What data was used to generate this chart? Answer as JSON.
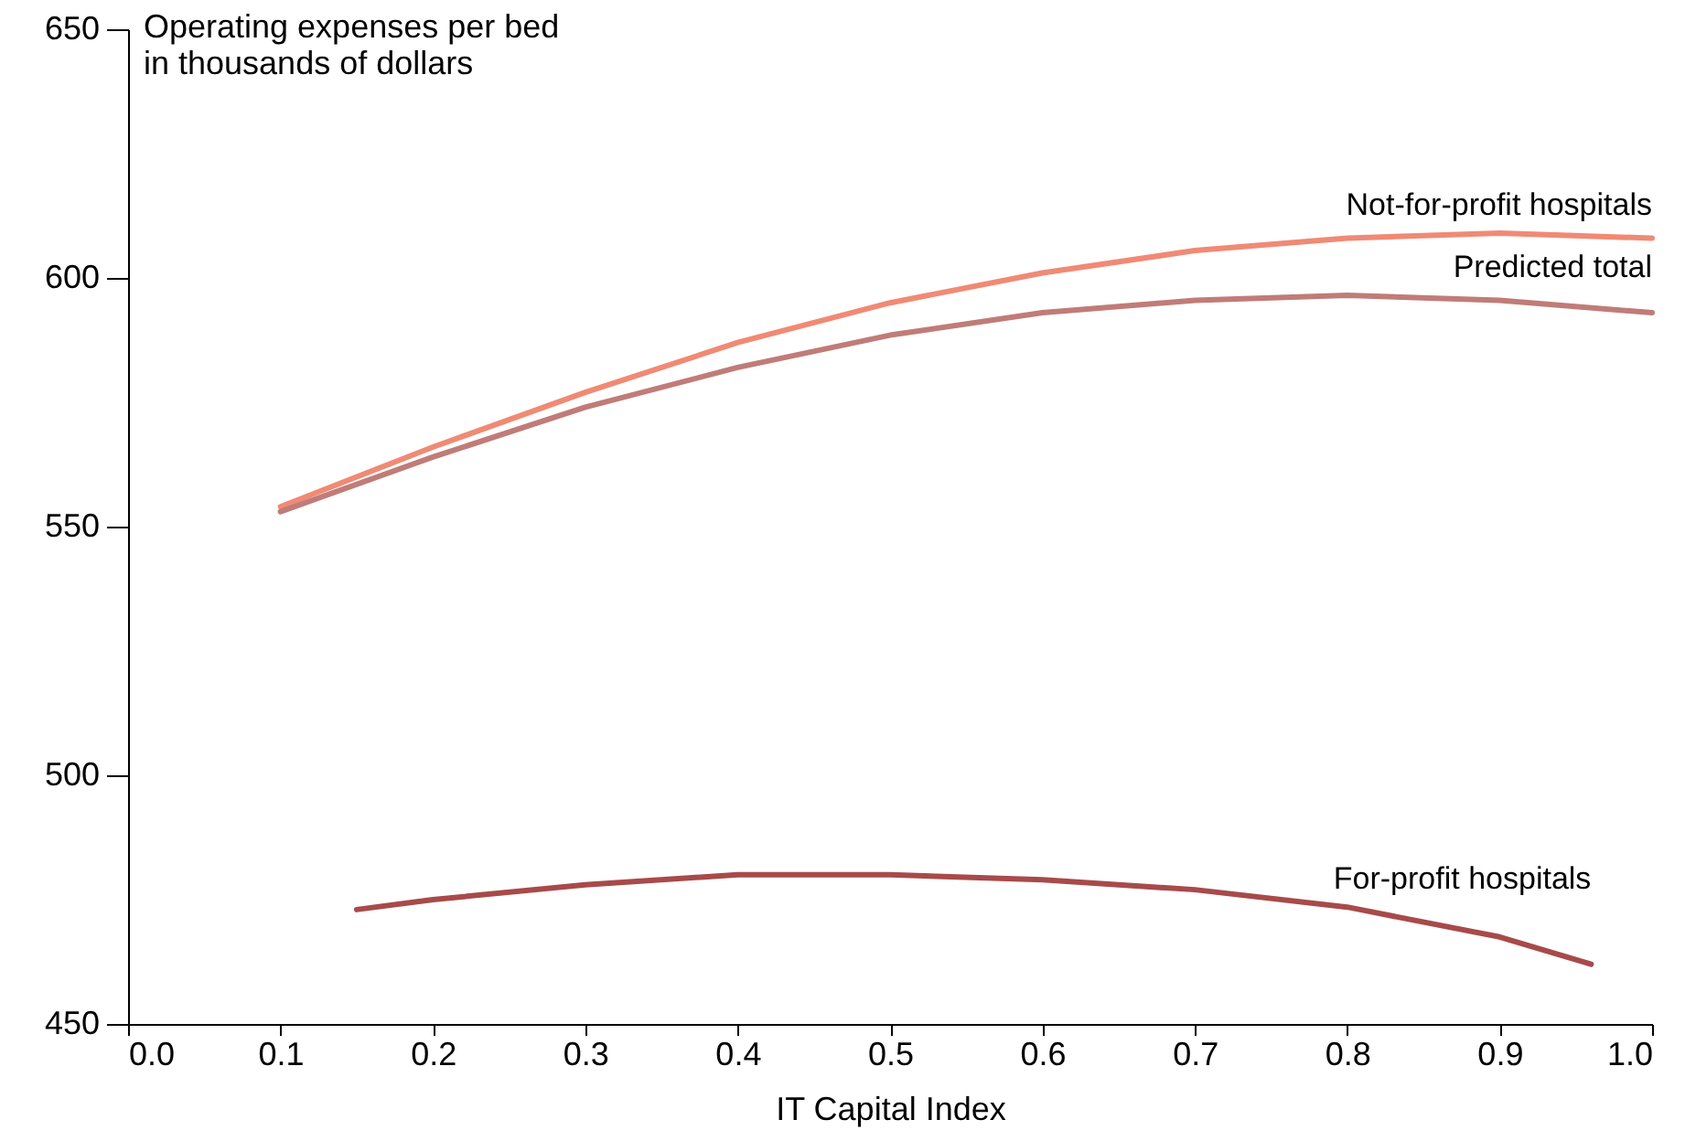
{
  "chart_data": {
    "type": "line",
    "xlabel": "IT Capital Index",
    "ylabel": "Operating expenses per bed\nin thousands of dollars",
    "xlim": [
      0,
      1
    ],
    "xticks": [
      {
        "value": 0,
        "label": "0.0"
      },
      {
        "value": 0.1,
        "label": "0.1"
      },
      {
        "value": 0.2,
        "label": "0.2"
      },
      {
        "value": 0.3,
        "label": "0.3"
      },
      {
        "value": 0.4,
        "label": "0.4"
      },
      {
        "value": 0.5,
        "label": "0.5"
      },
      {
        "value": 0.6,
        "label": "0.6"
      },
      {
        "value": 0.7,
        "label": "0.7"
      },
      {
        "value": 0.8,
        "label": "0.8"
      },
      {
        "value": 0.9,
        "label": "0.9"
      },
      {
        "value": 1,
        "label": "1.0"
      }
    ],
    "ylim": [
      450,
      650
    ],
    "yticks": [
      450,
      500,
      550,
      600,
      650
    ],
    "grid": false,
    "marker": "none",
    "line_style": "solid",
    "series": [
      {
        "name": "Not-for-profit hospitals",
        "color": "#f08a75",
        "x": [
          0.1,
          0.2,
          0.3,
          0.4,
          0.5,
          0.6,
          0.7,
          0.8,
          0.9,
          1.0
        ],
        "values": [
          554,
          566,
          577,
          587,
          595,
          601,
          605.5,
          608,
          609,
          608
        ]
      },
      {
        "name": "Predicted total",
        "color": "#c07c78",
        "x": [
          0.1,
          0.2,
          0.3,
          0.4,
          0.5,
          0.6,
          0.7,
          0.8,
          0.9,
          1.0
        ],
        "values": [
          553,
          564,
          574,
          582,
          588.5,
          593,
          595.5,
          596.5,
          595.5,
          593
        ]
      },
      {
        "name": "For-profit hospitals",
        "color": "#a84a4a",
        "x": [
          0.15,
          0.2,
          0.3,
          0.4,
          0.5,
          0.6,
          0.7,
          0.8,
          0.9,
          0.96
        ],
        "values": [
          473,
          475,
          478,
          480,
          480,
          479,
          477,
          473.5,
          467.5,
          462
        ]
      }
    ]
  }
}
